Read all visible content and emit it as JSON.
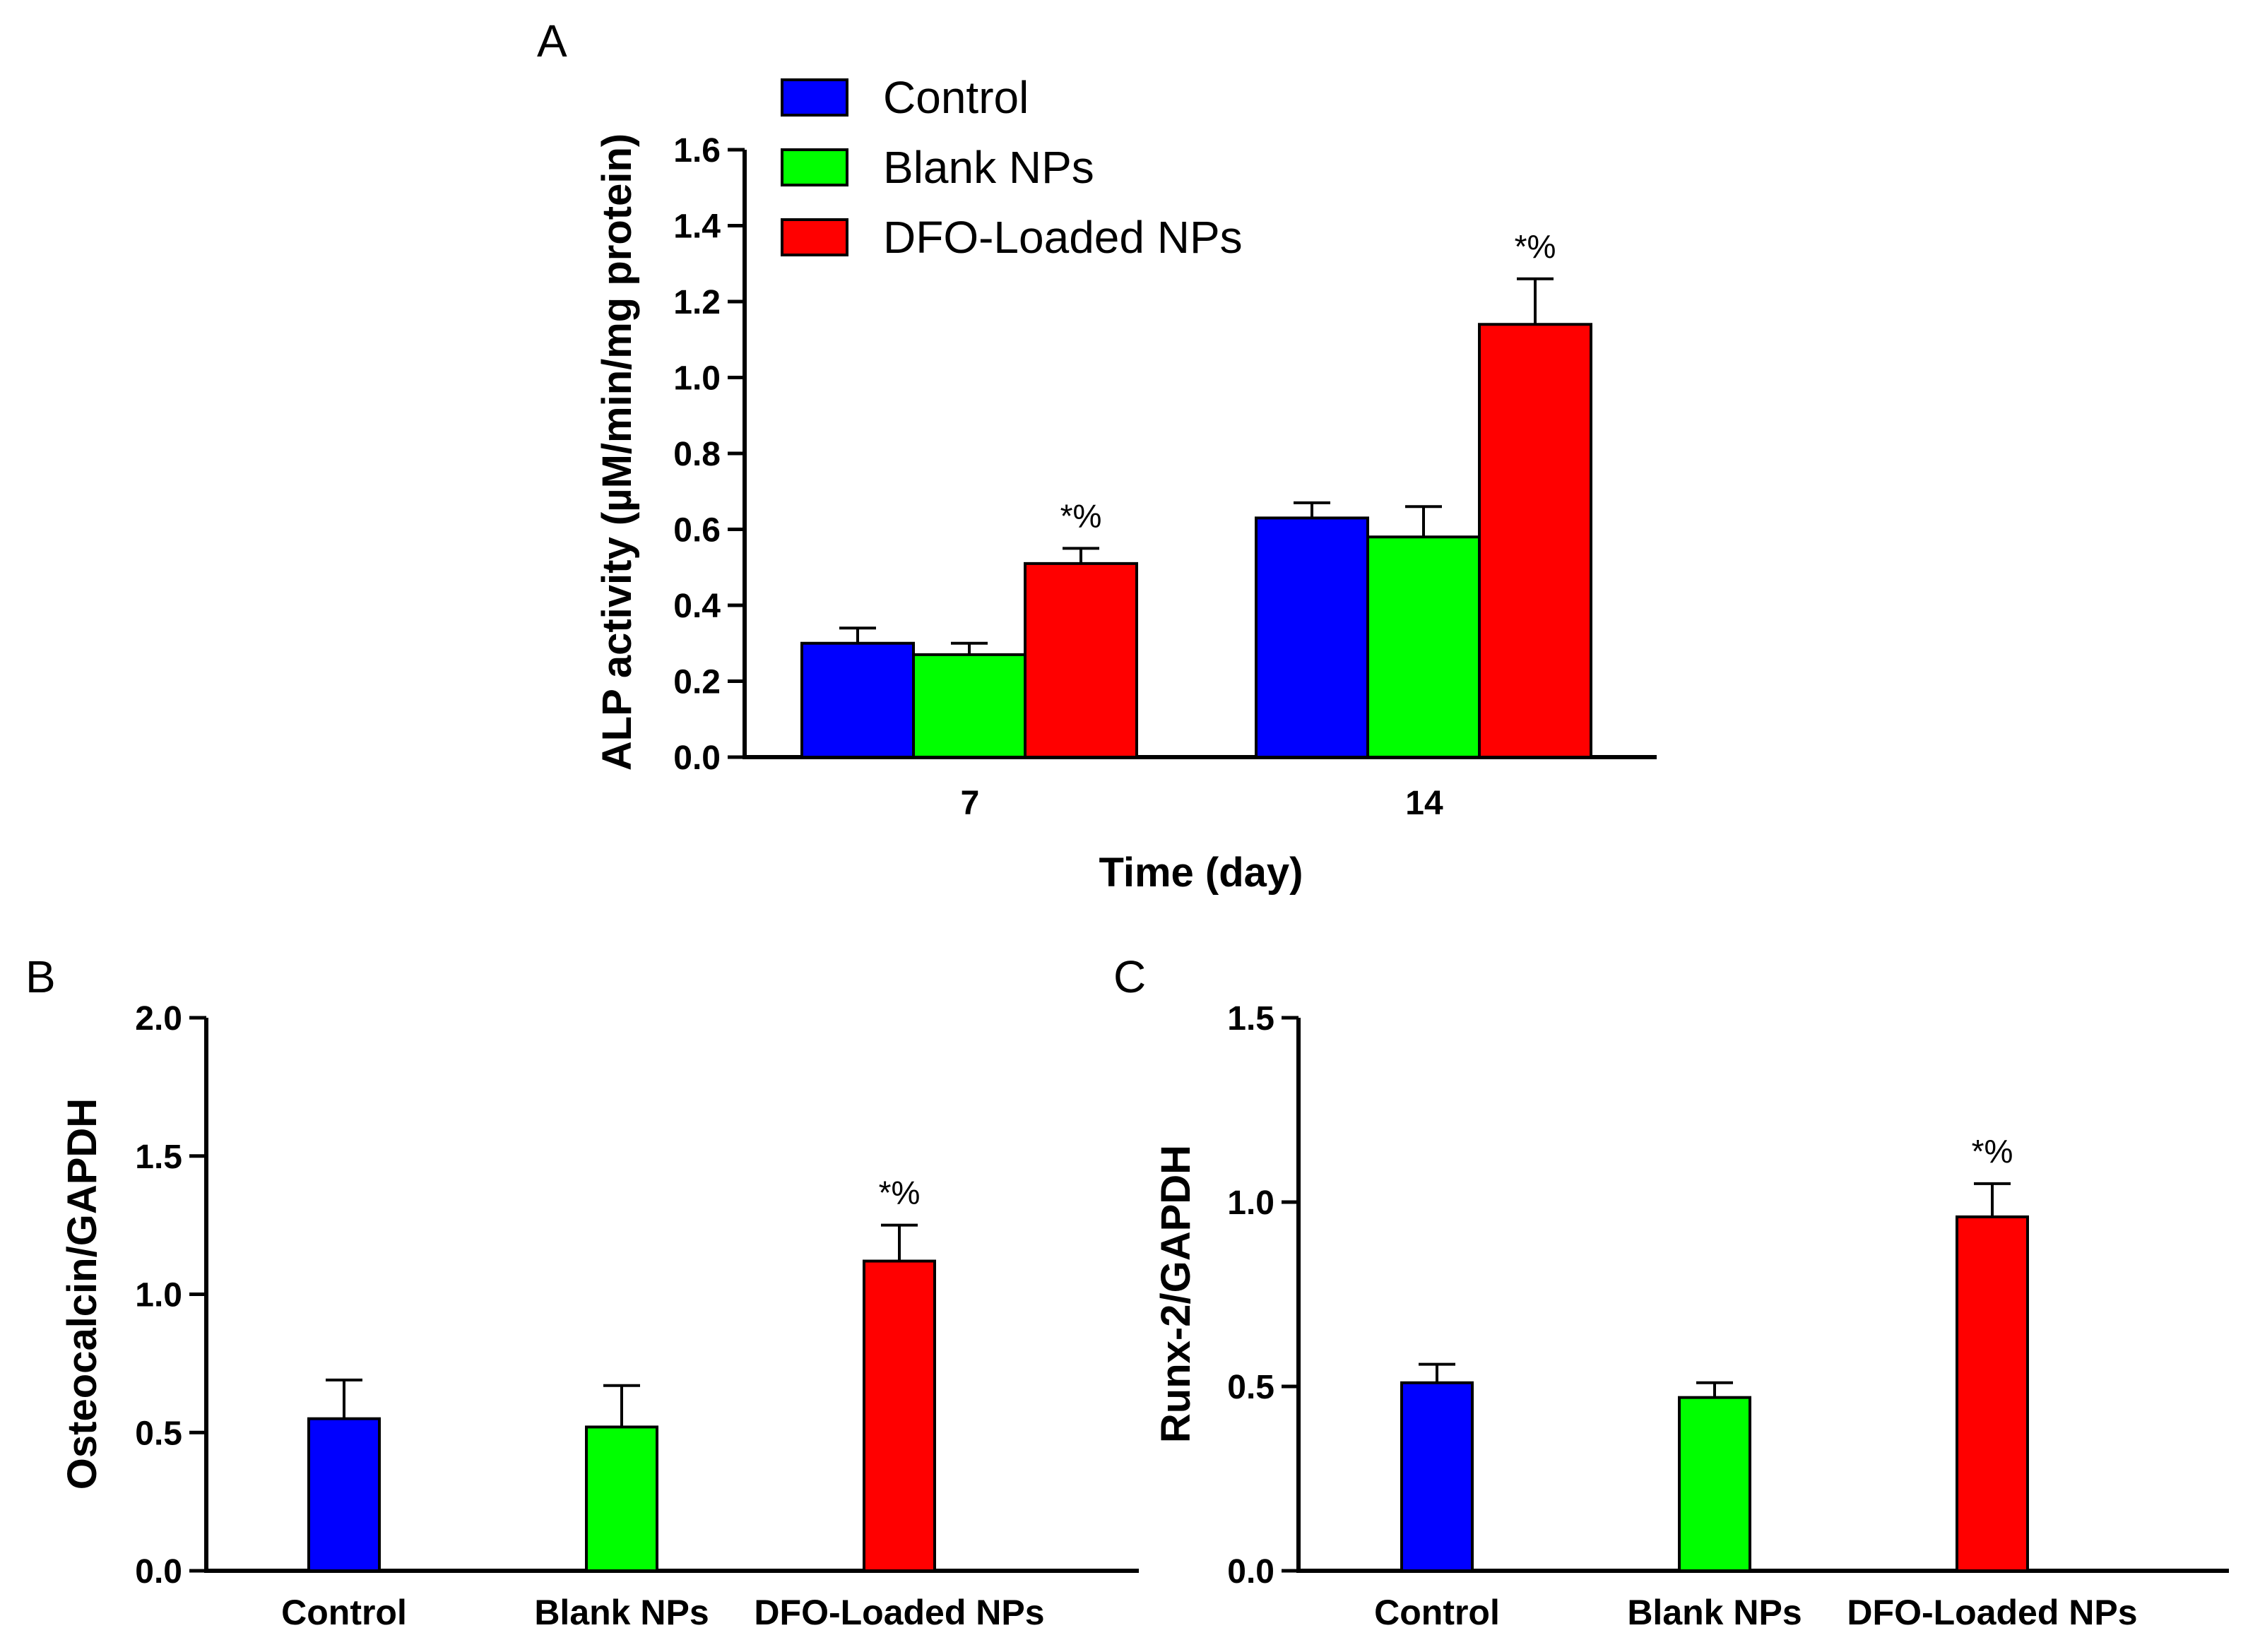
{
  "chart_data": [
    {
      "panel": "A",
      "type": "bar",
      "categories": [
        "7",
        "14"
      ],
      "series": [
        {
          "name": "Control",
          "color": "#0000ff",
          "values": [
            0.3,
            0.63
          ],
          "errors": [
            0.04,
            0.04
          ]
        },
        {
          "name": "Blank NPs",
          "color": "#00ff00",
          "values": [
            0.27,
            0.58
          ],
          "errors": [
            0.03,
            0.08
          ]
        },
        {
          "name": "DFO-Loaded NPs",
          "color": "#ff0000",
          "values": [
            0.51,
            1.14
          ],
          "errors": [
            0.04,
            0.12
          ]
        }
      ],
      "annotations": [
        {
          "series": 2,
          "category": 0,
          "text": "*%"
        },
        {
          "series": 2,
          "category": 1,
          "text": "*%"
        }
      ],
      "xlabel": "Time (day)",
      "ylabel": "ALP activity (µM/min/mg protein)",
      "ylim": [
        0,
        1.6
      ],
      "yticks": [
        "0.0",
        "0.2",
        "0.4",
        "0.6",
        "0.8",
        "1.0",
        "1.2",
        "1.4",
        "1.6"
      ],
      "legend": "top-left",
      "grid": false
    },
    {
      "panel": "B",
      "type": "bar",
      "categories": [
        "Control",
        "Blank NPs",
        "DFO-Loaded NPs"
      ],
      "values": [
        0.55,
        0.52,
        1.12
      ],
      "errors": [
        0.14,
        0.15,
        0.13
      ],
      "colors": [
        "#0000ff",
        "#00ff00",
        "#ff0000"
      ],
      "annotations": [
        {
          "category": 2,
          "text": "*%"
        }
      ],
      "xlabel": "",
      "ylabel": "Osteocalcin/GAPDH",
      "ylim": [
        0,
        2.0
      ],
      "yticks": [
        "0.0",
        "0.5",
        "1.0",
        "1.5",
        "2.0"
      ],
      "grid": false
    },
    {
      "panel": "C",
      "type": "bar",
      "categories": [
        "Control",
        "Blank NPs",
        "DFO-Loaded NPs"
      ],
      "values": [
        0.51,
        0.47,
        0.96
      ],
      "errors": [
        0.05,
        0.04,
        0.09
      ],
      "colors": [
        "#0000ff",
        "#00ff00",
        "#ff0000"
      ],
      "annotations": [
        {
          "category": 2,
          "text": "*%"
        }
      ],
      "xlabel": "",
      "ylabel": "Runx-2/GAPDH",
      "ylim": [
        0,
        1.5
      ],
      "yticks": [
        "0.0",
        "0.5",
        "1.0",
        "1.5"
      ],
      "grid": false
    }
  ]
}
